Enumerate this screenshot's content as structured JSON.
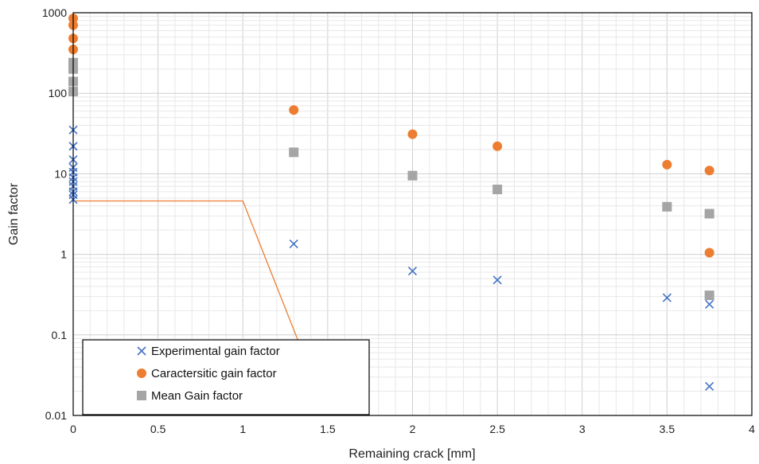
{
  "chart_data": {
    "type": "scatter",
    "title": "",
    "xlabel": "Remaining crack [mm]",
    "ylabel": "Gain factor",
    "xlim": [
      0,
      4
    ],
    "ylim": [
      0.01,
      1000
    ],
    "y_scale": "log",
    "x_ticks": [
      "0",
      "0.5",
      "1",
      "1.5",
      "2",
      "2.5",
      "3",
      "3.5",
      "4"
    ],
    "y_ticks": [
      "0.01",
      "0.1",
      "1",
      "10",
      "100",
      "1000"
    ],
    "grid": true,
    "legend_position": "bottom-left",
    "series": [
      {
        "name": "Experimental gain factor",
        "marker": "x",
        "color": "#4472C4",
        "points": [
          [
            0,
            35
          ],
          [
            0,
            22
          ],
          [
            0,
            15
          ],
          [
            0,
            12
          ],
          [
            0,
            10.5
          ],
          [
            0,
            9
          ],
          [
            0,
            8
          ],
          [
            0,
            7
          ],
          [
            0,
            6
          ],
          [
            0,
            5.5
          ],
          [
            0,
            4.8
          ],
          [
            1.3,
            1.35
          ],
          [
            2.0,
            0.62
          ],
          [
            2.5,
            0.48
          ],
          [
            3.5,
            0.29
          ],
          [
            3.75,
            0.24
          ],
          [
            3.75,
            0.023
          ]
        ]
      },
      {
        "name": "Caractersitic gain factor",
        "marker": "circle",
        "color": "#ED7D31",
        "points": [
          [
            0,
            850
          ],
          [
            0,
            700
          ],
          [
            0,
            480
          ],
          [
            0,
            350
          ],
          [
            1.3,
            62
          ],
          [
            2.0,
            31
          ],
          [
            2.5,
            22
          ],
          [
            3.5,
            13
          ],
          [
            3.75,
            11
          ],
          [
            3.75,
            1.05
          ]
        ]
      },
      {
        "name": "Mean Gain factor",
        "marker": "square",
        "color": "#A5A5A5",
        "points": [
          [
            0,
            240
          ],
          [
            0,
            200
          ],
          [
            0,
            140
          ],
          [
            0,
            105
          ],
          [
            1.3,
            18.5
          ],
          [
            2.0,
            9.5
          ],
          [
            2.5,
            6.4
          ],
          [
            3.5,
            3.9
          ],
          [
            3.75,
            3.2
          ],
          [
            3.75,
            0.31
          ]
        ]
      }
    ],
    "reference_line": {
      "color": "#ED7D31",
      "points": [
        [
          0,
          4.6
        ],
        [
          1.0,
          4.6
        ],
        [
          1.5,
          0.01
        ]
      ]
    }
  }
}
